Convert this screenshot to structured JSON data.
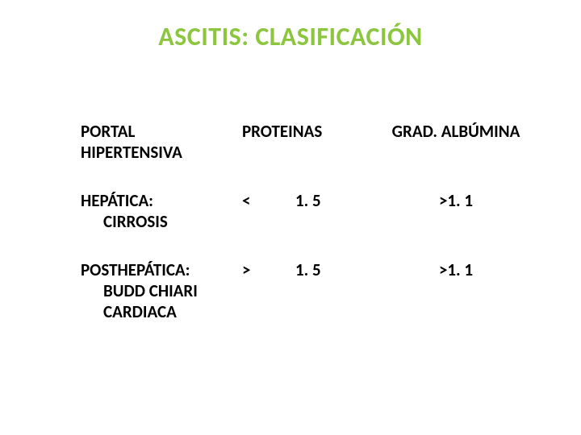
{
  "title": {
    "text": "ASCITIS:  CLASIFICACIÓN",
    "color": "#8cc63f",
    "fontsize": 32
  },
  "header": {
    "col1_line1": "PORTAL",
    "col1_line2": "HIPERTENSIVA",
    "col2": "PROTEINAS",
    "col3": "GRAD. ALBÚMINA"
  },
  "rows": [
    {
      "label": "HEPÁTICA:",
      "subs": [
        "CIRROSIS"
      ],
      "symbol": "<",
      "value": "1. 5",
      "grad": ">1. 1"
    },
    {
      "label": "POSTHEPÁTICA:",
      "subs": [
        "BUDD CHIARI",
        "CARDIACA"
      ],
      "symbol": ">",
      "value": "1. 5",
      "grad": ">1. 1"
    }
  ],
  "styles": {
    "body_fontsize": 21,
    "text_color": "#000000",
    "background": "#ffffff"
  }
}
